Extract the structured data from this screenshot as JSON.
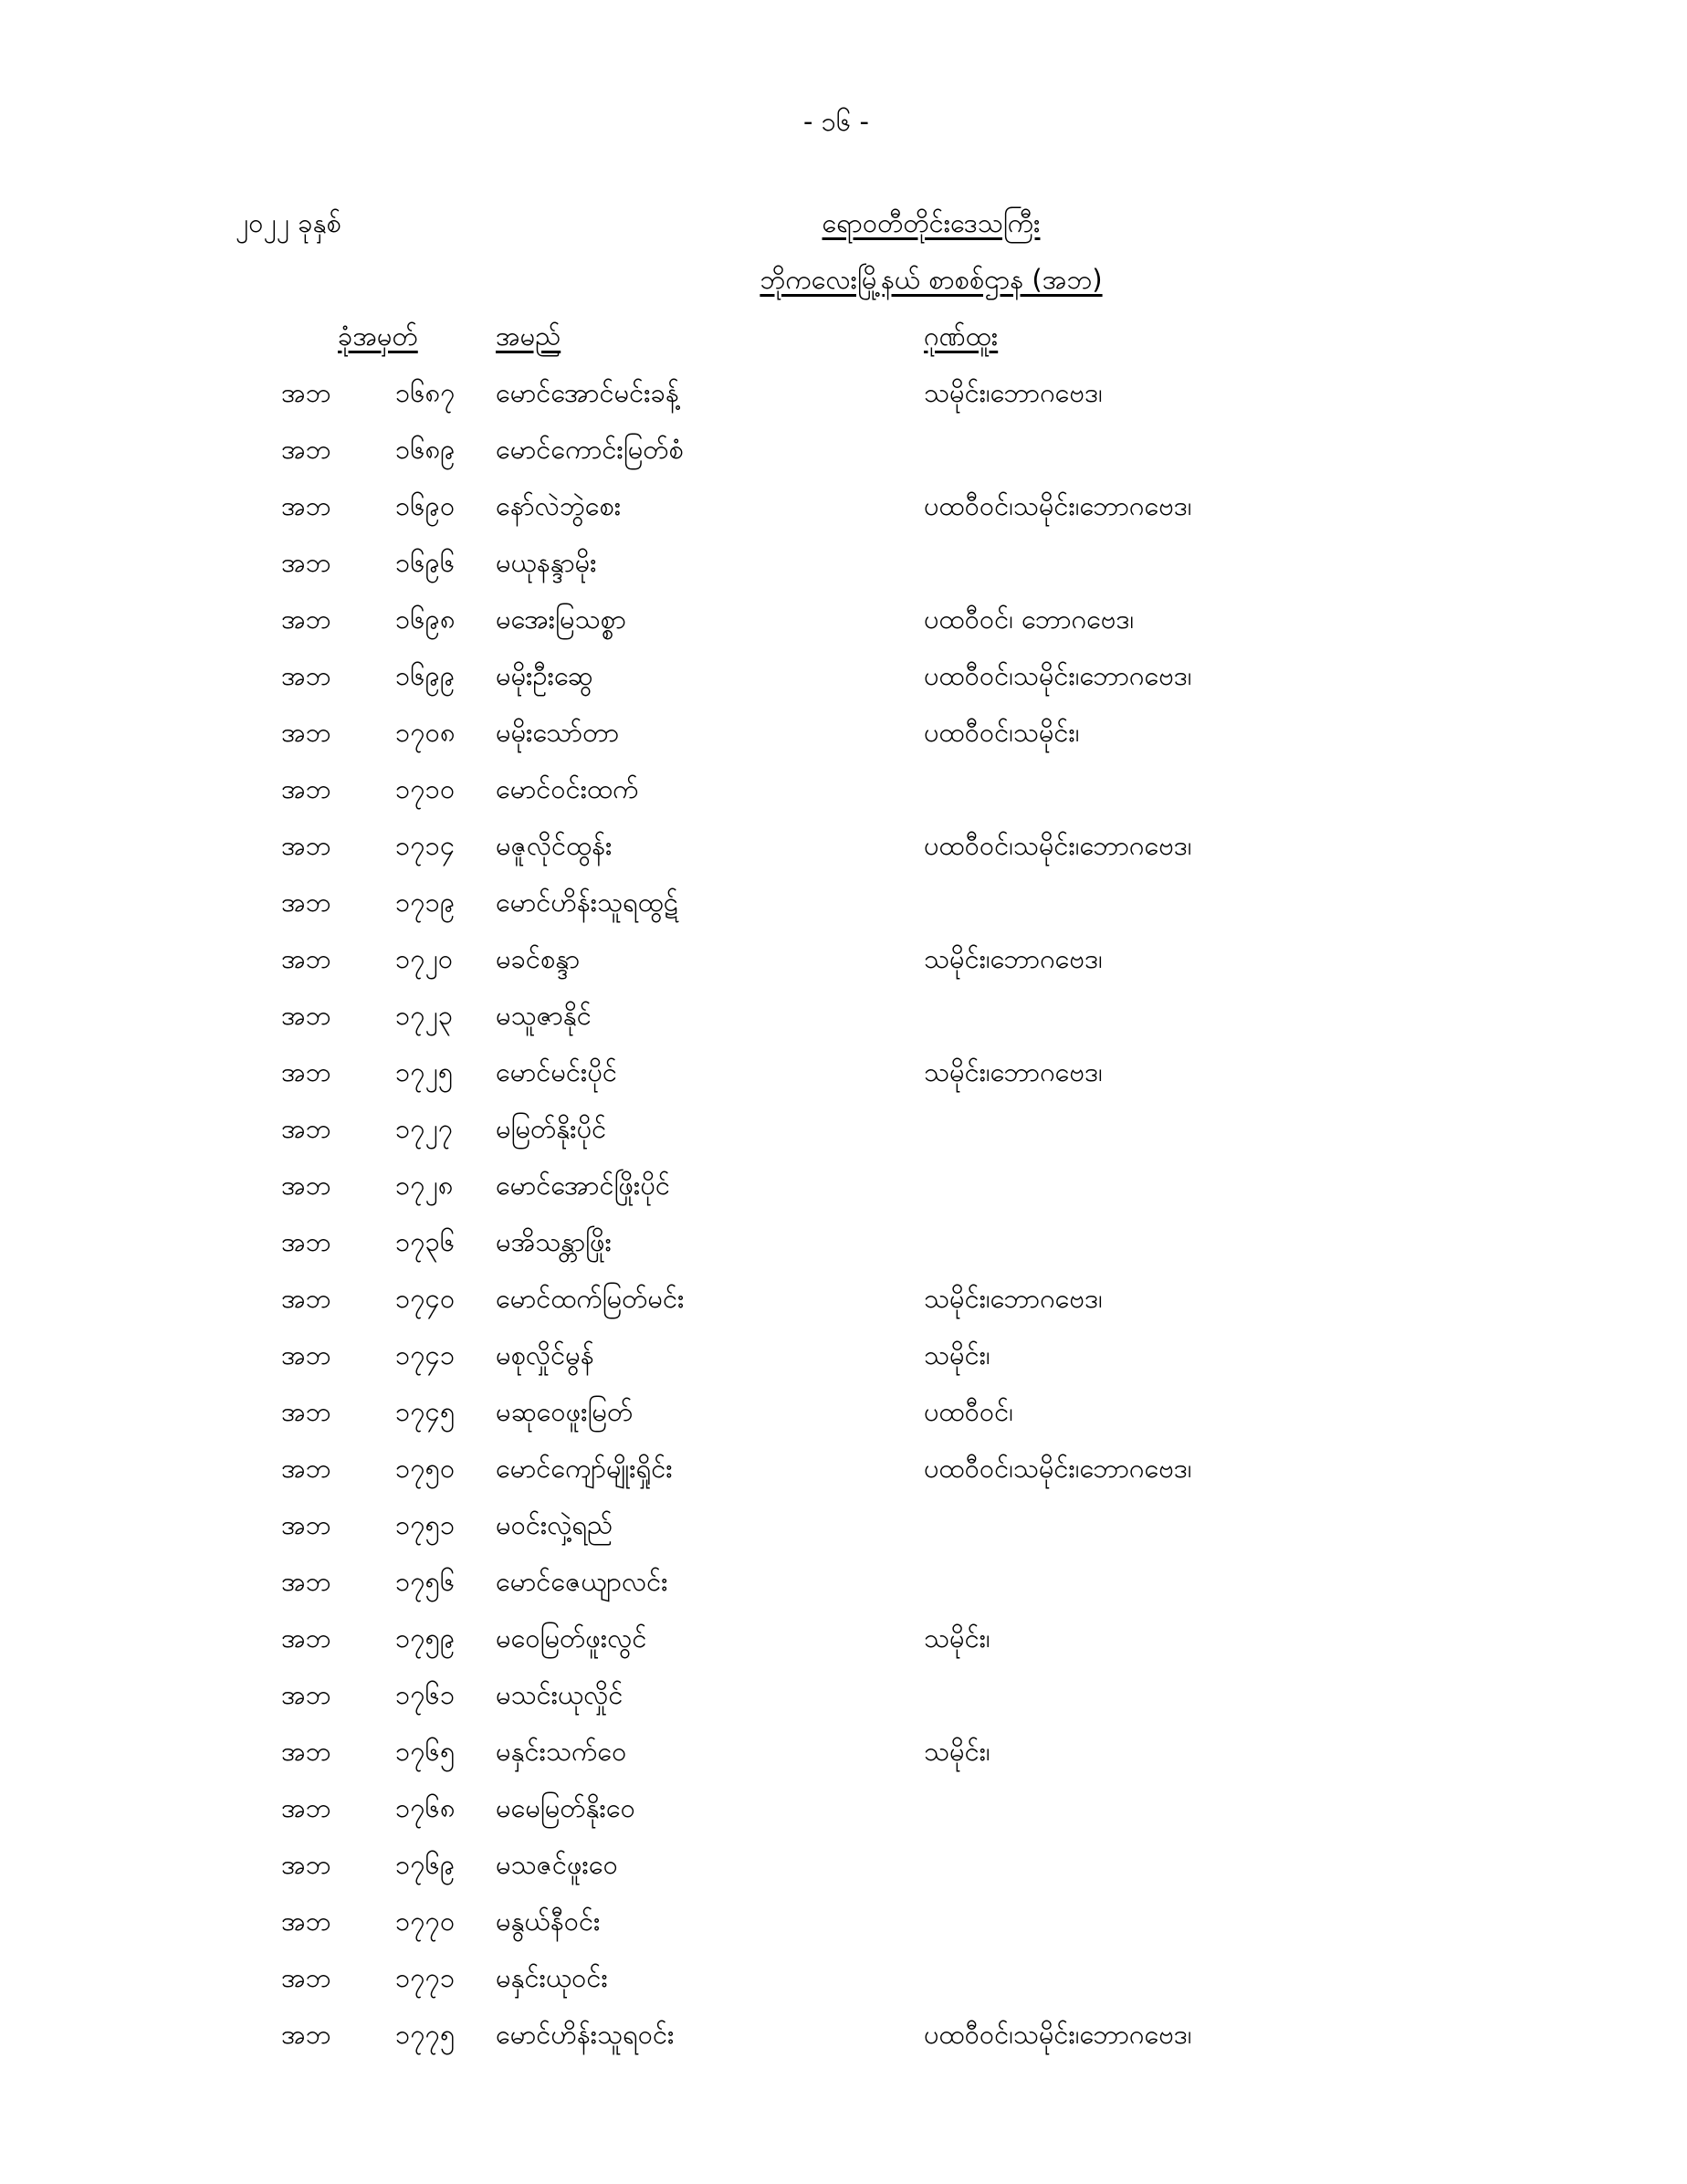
{
  "page_number": "- ၁၆ -",
  "year": "၂၀၂၂ ခုနှစ်",
  "title": "ရောဝတီတိုင်းဒေသကြီး",
  "subtitle": "ဘိုကလေးမြို့နယ် စာစစ်ဌာန (အဘ)",
  "headers": {
    "roll": "ခုံအမှတ်",
    "name": "အမည်",
    "distinction": "ဂုဏ်ထူး"
  },
  "rows": [
    {
      "code": "အဘ",
      "no": "၁၆၈၇",
      "name": "မောင်အောင်မင်းခန့်",
      "distinction": "သမိုင်း၊ဘောဂဗေဒ၊"
    },
    {
      "code": "အဘ",
      "no": "၁၆၈၉",
      "name": "မောင်ကောင်းမြတ်စံ",
      "distinction": ""
    },
    {
      "code": "အဘ",
      "no": "၁၆၉၀",
      "name": "နော်လဲဘွဲစေး",
      "distinction": "ပထဝီဝင်၊သမိုင်း၊ဘောဂဗေဒ၊"
    },
    {
      "code": "အဘ",
      "no": "၁၆၉၆",
      "name": "မယုနန္ဒာမိုး",
      "distinction": ""
    },
    {
      "code": "အဘ",
      "no": "၁၆၉၈",
      "name": "မအေးမြသစ္စာ",
      "distinction": "ပထဝီဝင်၊ ဘောဂဗေဒ၊"
    },
    {
      "code": "အဘ",
      "no": "၁၆၉၉",
      "name": "မမိုးဦးဆွေ",
      "distinction": "ပထဝီဝင်၊သမိုင်း၊ဘောဂဗေဒ၊"
    },
    {
      "code": "အဘ",
      "no": "၁၇၀၈",
      "name": "မမိုးသော်တာ",
      "distinction": "ပထဝီဝင်၊သမိုင်း၊"
    },
    {
      "code": "အဘ",
      "no": "၁၇၁၀",
      "name": "မောင်ဝင်းထက်",
      "distinction": ""
    },
    {
      "code": "အဘ",
      "no": "၁၇၁၄",
      "name": "မဇူလိုင်ထွန်း",
      "distinction": "ပထဝီဝင်၊သမိုင်း၊ဘောဂဗေဒ၊"
    },
    {
      "code": "အဘ",
      "no": "၁၇၁၉",
      "name": "မောင်ဟိန်းသူရထွဋ်",
      "distinction": ""
    },
    {
      "code": "အဘ",
      "no": "၁၇၂၀",
      "name": "မခင်စန္ဒာ",
      "distinction": "သမိုင်း၊ဘောဂဗေဒ၊"
    },
    {
      "code": "အဘ",
      "no": "၁၇၂၃",
      "name": "မသူဇာနိုင်",
      "distinction": ""
    },
    {
      "code": "အဘ",
      "no": "၁၇၂၅",
      "name": "မောင်မင်းပိုင်",
      "distinction": "သမိုင်း၊ဘောဂဗေဒ၊"
    },
    {
      "code": "အဘ",
      "no": "၁၇၂၇",
      "name": "မမြတ်နိုးပိုင်",
      "distinction": ""
    },
    {
      "code": "အဘ",
      "no": "၁၇၂၈",
      "name": "မောင်အောင်ဖြိုးပိုင်",
      "distinction": ""
    },
    {
      "code": "အဘ",
      "no": "၁၇၃၆",
      "name": "မအိသန္တာဖြိုး",
      "distinction": ""
    },
    {
      "code": "အဘ",
      "no": "၁၇၄၀",
      "name": "မောင်ထက်မြတ်မင်း",
      "distinction": "သမိုင်း၊ဘောဂဗေဒ၊"
    },
    {
      "code": "အဘ",
      "no": "၁၇၄၁",
      "name": "မစုလှိုင်မွန်",
      "distinction": "သမိုင်း၊"
    },
    {
      "code": "အဘ",
      "no": "၁၇၄၅",
      "name": "မဆုဝေဖူးမြတ်",
      "distinction": "ပထဝီဝင်၊"
    },
    {
      "code": "အဘ",
      "no": "၁၇၅၀",
      "name": "မောင်ကျော်မျိုးရှိုင်း",
      "distinction": "ပထဝီဝင်၊သမိုင်း၊ဘောဂဗေဒ၊"
    },
    {
      "code": "အဘ",
      "no": "၁၇၅၁",
      "name": "မဝင်းလှဲ့ရည်",
      "distinction": ""
    },
    {
      "code": "အဘ",
      "no": "၁၇၅၆",
      "name": "မောင်ဇေယျာလင်း",
      "distinction": ""
    },
    {
      "code": "အဘ",
      "no": "၁၇၅၉",
      "name": "မဝေမြတ်ဖူးလွင်",
      "distinction": "သမိုင်း၊"
    },
    {
      "code": "အဘ",
      "no": "၁၇၆၁",
      "name": "မသင်းယုလှိုင်",
      "distinction": ""
    },
    {
      "code": "အဘ",
      "no": "၁၇၆၅",
      "name": "မနှင်းသက်ဝေ",
      "distinction": "သမိုင်း၊"
    },
    {
      "code": "အဘ",
      "no": "၁၇၆၈",
      "name": "မမေမြတ်နိုးဝေ",
      "distinction": ""
    },
    {
      "code": "အဘ",
      "no": "၁၇၆၉",
      "name": "မသဇင်ဖူးဝေ",
      "distinction": ""
    },
    {
      "code": "အဘ",
      "no": "၁၇၇၀",
      "name": "မနွယ်နီဝင်း",
      "distinction": ""
    },
    {
      "code": "အဘ",
      "no": "၁၇၇၁",
      "name": "မနှင်းယုဝင်း",
      "distinction": ""
    },
    {
      "code": "အဘ",
      "no": "၁၇၇၅",
      "name": "မောင်ဟိန်းသူရဝင်း",
      "distinction": "ပထဝီဝင်၊သမိုင်း၊ဘောဂဗေဒ၊"
    }
  ]
}
